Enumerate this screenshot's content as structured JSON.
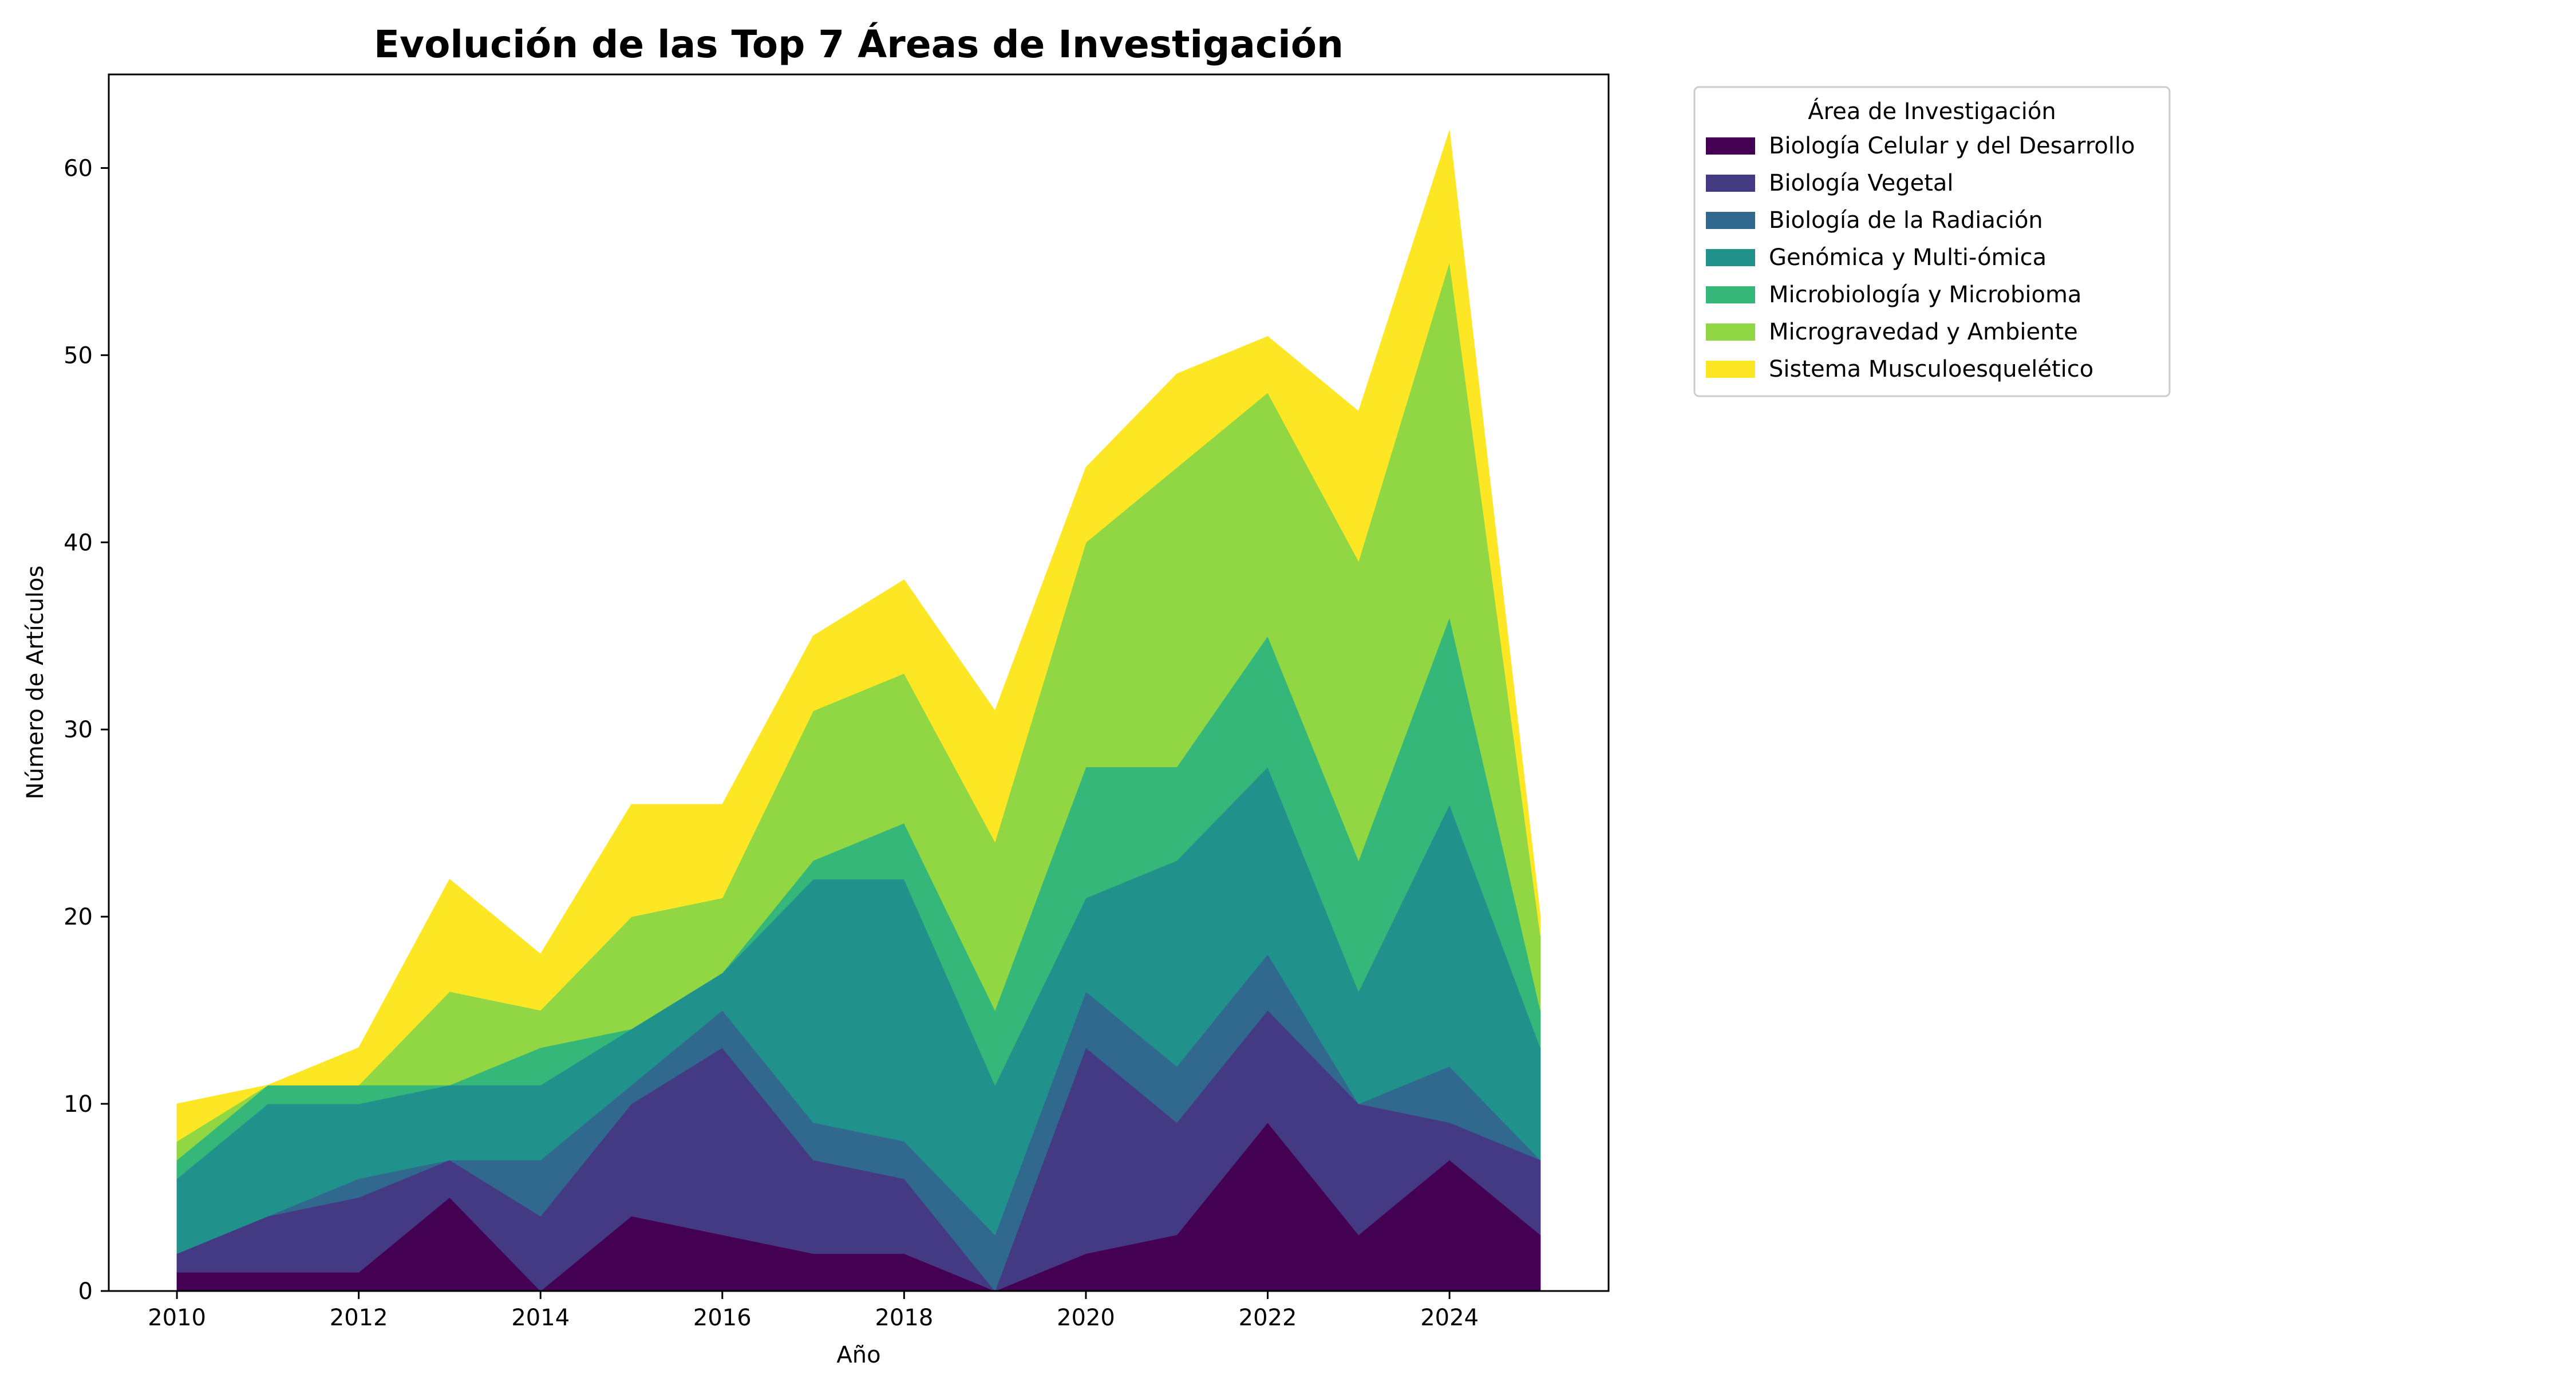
{
  "chart_data": {
    "type": "area",
    "stacked": true,
    "title": "Evolución de las Top 7 Áreas de Investigación",
    "xlabel": "Año",
    "ylabel": "Número de Artículos",
    "x": [
      2010,
      2011,
      2012,
      2013,
      2014,
      2015,
      2016,
      2017,
      2018,
      2019,
      2020,
      2021,
      2022,
      2023,
      2024,
      2025
    ],
    "xlim": [
      2009.25,
      2025.75
    ],
    "ylim": [
      0,
      65
    ],
    "x_ticks": [
      "2010",
      "2012",
      "2014",
      "2016",
      "2018",
      "2020",
      "2022",
      "2024"
    ],
    "y_ticks": [
      "0",
      "10",
      "20",
      "30",
      "40",
      "50",
      "60"
    ],
    "grid": false,
    "legend": {
      "title": "Área de Investigación",
      "placement": "outside-upper-right"
    },
    "series": [
      {
        "name": "Biología Celular y del Desarrollo",
        "color": "#440154",
        "values": [
          1,
          1,
          1,
          5,
          0,
          4,
          3,
          2,
          2,
          0,
          2,
          3,
          9,
          3,
          7,
          3
        ]
      },
      {
        "name": "Biología Vegetal",
        "color": "#443983",
        "values": [
          1,
          3,
          4,
          2,
          4,
          6,
          10,
          5,
          4,
          0,
          11,
          6,
          6,
          7,
          2,
          4
        ]
      },
      {
        "name": "Biología de la Radiación",
        "color": "#31688e",
        "values": [
          0,
          0,
          1,
          0,
          3,
          1,
          2,
          2,
          2,
          3,
          3,
          3,
          3,
          0,
          3,
          0
        ]
      },
      {
        "name": "Genómica y Multi-ómica",
        "color": "#21918c",
        "values": [
          4,
          6,
          4,
          4,
          4,
          3,
          2,
          13,
          14,
          8,
          5,
          11,
          10,
          6,
          14,
          6
        ]
      },
      {
        "name": "Microbiología y Microbioma",
        "color": "#35b779",
        "values": [
          1,
          1,
          1,
          0,
          2,
          0,
          0,
          1,
          3,
          4,
          7,
          5,
          7,
          7,
          10,
          2
        ]
      },
      {
        "name": "Microgravedad y Ambiente",
        "color": "#90d743",
        "values": [
          1,
          0,
          0,
          5,
          2,
          6,
          4,
          8,
          8,
          9,
          12,
          16,
          13,
          16,
          19,
          4
        ]
      },
      {
        "name": "Sistema Musculoesquelético",
        "color": "#fde725",
        "values": [
          2,
          0,
          2,
          6,
          3,
          6,
          5,
          4,
          5,
          7,
          4,
          5,
          3,
          8,
          7,
          1
        ]
      }
    ]
  }
}
